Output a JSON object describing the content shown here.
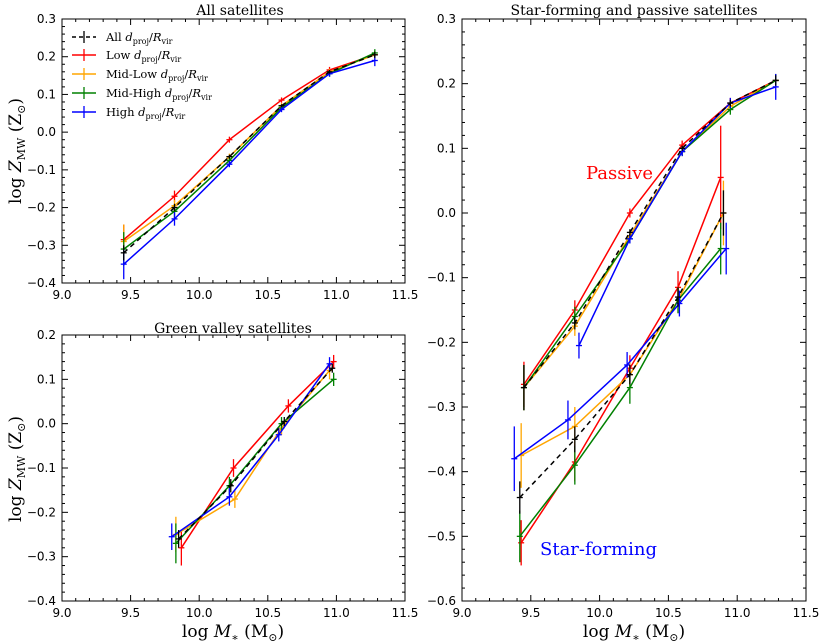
{
  "colors": {
    "all": "#000000",
    "low": "#ff0000",
    "midlow": "#ffa500",
    "midhigh": "#008000",
    "high": "#0000ff",
    "passive_text": "#ff0000",
    "sf_text": "#0000ff"
  },
  "legend": {
    "all": "All d_proj/R_vir",
    "low": "Low d_proj/R_vir",
    "midlow": "Mid-Low d_proj/R_vir",
    "midhigh": "Mid-High d_proj/R_vir",
    "high": "High d_proj/R_vir"
  },
  "chart_data": [
    {
      "id": "all",
      "type": "line",
      "title": "All satellites",
      "xlabel": "log M* (M⊙)",
      "ylabel": "log Z_MW (Z⊙)",
      "xlim": [
        9.0,
        11.5
      ],
      "ylim": [
        -0.4,
        0.3
      ],
      "xticks": [
        9.0,
        9.5,
        10.0,
        10.5,
        11.0,
        11.5
      ],
      "yticks": [
        -0.4,
        -0.3,
        -0.2,
        -0.1,
        0.0,
        0.1,
        0.2,
        0.3
      ],
      "tick_labels_x": [
        "9.0",
        "9.5",
        "10.0",
        "10.5",
        "11.0",
        "11.5"
      ],
      "tick_labels_y": [
        "−0.4",
        "−0.3",
        "−0.2",
        "−0.1",
        "0.0",
        "0.1",
        "0.2",
        "0.3"
      ],
      "series": [
        {
          "key": "low",
          "name": "Low d_proj/R_vir",
          "dashed": false,
          "x": [
            9.45,
            9.82,
            10.22,
            10.6,
            10.95,
            11.28
          ],
          "y": [
            -0.285,
            -0.17,
            -0.02,
            0.085,
            0.165,
            0.205
          ],
          "err": [
            0.04,
            0.015,
            0.008,
            0.007,
            0.008,
            0.01
          ]
        },
        {
          "key": "midlow",
          "name": "Mid-Low d_proj/R_vir",
          "dashed": false,
          "x": [
            9.45,
            9.82,
            10.22,
            10.6,
            10.95,
            11.28
          ],
          "y": [
            -0.29,
            -0.195,
            -0.065,
            0.07,
            0.16,
            0.205
          ],
          "err": [
            0.045,
            0.015,
            0.008,
            0.007,
            0.008,
            0.01
          ]
        },
        {
          "key": "midhigh",
          "name": "Mid-High d_proj/R_vir",
          "dashed": false,
          "x": [
            9.45,
            9.82,
            10.22,
            10.6,
            10.95,
            11.28
          ],
          "y": [
            -0.31,
            -0.21,
            -0.075,
            0.065,
            0.155,
            0.21
          ],
          "err": [
            0.045,
            0.018,
            0.008,
            0.007,
            0.008,
            0.01
          ]
        },
        {
          "key": "high",
          "name": "High d_proj/R_vir",
          "dashed": false,
          "x": [
            9.45,
            9.82,
            10.22,
            10.6,
            10.95,
            11.28
          ],
          "y": [
            -0.35,
            -0.23,
            -0.085,
            0.06,
            0.155,
            0.19
          ],
          "err": [
            0.04,
            0.018,
            0.008,
            0.007,
            0.008,
            0.015
          ]
        },
        {
          "key": "all",
          "name": "All d_proj/R_vir",
          "dashed": true,
          "x": [
            9.45,
            9.82,
            10.22,
            10.6,
            10.95,
            11.28
          ],
          "y": [
            -0.32,
            -0.2,
            -0.065,
            0.07,
            0.16,
            0.205
          ],
          "err": [
            0.02,
            0.01,
            0.005,
            0.004,
            0.005,
            0.008
          ]
        }
      ]
    },
    {
      "id": "green",
      "type": "line",
      "title": "Green valley satellites",
      "xlabel": "log M* (M⊙)",
      "ylabel": "log Z_MW (Z⊙)",
      "xlim": [
        9.0,
        11.5
      ],
      "ylim": [
        -0.4,
        0.2
      ],
      "xticks": [
        9.0,
        9.5,
        10.0,
        10.5,
        11.0,
        11.5
      ],
      "yticks": [
        -0.4,
        -0.3,
        -0.2,
        -0.1,
        0.0,
        0.1,
        0.2
      ],
      "tick_labels_x": [
        "9.0",
        "9.5",
        "10.0",
        "10.5",
        "11.0",
        "11.5"
      ],
      "tick_labels_y": [
        "−0.4",
        "−0.3",
        "−0.2",
        "−0.1",
        "0.0",
        "0.1",
        "0.2"
      ],
      "series": [
        {
          "key": "low",
          "name": "Low d_proj/R_vir",
          "dashed": false,
          "x": [
            9.87,
            10.25,
            10.65,
            10.98
          ],
          "y": [
            -0.28,
            -0.1,
            0.04,
            0.14
          ],
          "err": [
            0.04,
            0.02,
            0.015,
            0.015
          ]
        },
        {
          "key": "midlow",
          "name": "Mid-Low d_proj/R_vir",
          "dashed": false,
          "x": [
            9.83,
            10.26,
            10.6,
            10.95
          ],
          "y": [
            -0.25,
            -0.17,
            -0.01,
            0.12
          ],
          "err": [
            0.04,
            0.02,
            0.015,
            0.02
          ]
        },
        {
          "key": "midhigh",
          "name": "Mid-High d_proj/R_vir",
          "dashed": false,
          "x": [
            9.83,
            10.22,
            10.6,
            10.98
          ],
          "y": [
            -0.27,
            -0.14,
            0.0,
            0.1
          ],
          "err": [
            0.045,
            0.02,
            0.015,
            0.015
          ]
        },
        {
          "key": "high",
          "name": "High d_proj/R_vir",
          "dashed": false,
          "x": [
            9.8,
            10.22,
            10.58,
            10.95
          ],
          "y": [
            -0.255,
            -0.165,
            -0.025,
            0.135
          ],
          "err": [
            0.03,
            0.02,
            0.015,
            0.015
          ]
        },
        {
          "key": "all",
          "name": "All d_proj/R_vir",
          "dashed": true,
          "x": [
            9.85,
            10.23,
            10.62,
            10.97
          ],
          "y": [
            -0.26,
            -0.14,
            0.005,
            0.125
          ],
          "err": [
            0.02,
            0.015,
            0.01,
            0.01
          ]
        }
      ]
    },
    {
      "id": "sfpassive",
      "type": "line",
      "title": "Star-forming and passive satellites",
      "xlabel": "log M* (M⊙)",
      "ylabel": "",
      "xlim": [
        9.0,
        11.5
      ],
      "ylim": [
        -0.6,
        0.3
      ],
      "xticks": [
        9.0,
        9.5,
        10.0,
        10.5,
        11.0,
        11.5
      ],
      "yticks": [
        -0.6,
        -0.5,
        -0.4,
        -0.3,
        -0.2,
        -0.1,
        0.0,
        0.1,
        0.2,
        0.3
      ],
      "tick_labels_x": [
        "9.0",
        "9.5",
        "10.0",
        "10.5",
        "11.0",
        "11.5"
      ],
      "tick_labels_y": [
        "−0.6",
        "−0.5",
        "−0.4",
        "−0.3",
        "−0.2",
        "−0.1",
        "0.0",
        "0.1",
        "0.2",
        "0.3"
      ],
      "annotations": {
        "passive": "Passive",
        "star_forming": "Star-forming"
      },
      "series": [
        {
          "key": "low",
          "group": "passive",
          "name": "Low d_proj/R_vir",
          "dashed": false,
          "x": [
            9.45,
            9.82,
            10.22,
            10.6,
            10.95,
            11.28
          ],
          "y": [
            -0.265,
            -0.15,
            0.0,
            0.105,
            0.17,
            0.205
          ],
          "err": [
            0.035,
            0.015,
            0.007,
            0.007,
            0.008,
            0.01
          ]
        },
        {
          "key": "midlow",
          "group": "passive",
          "name": "Mid-Low d_proj/R_vir",
          "dashed": false,
          "x": [
            9.45,
            9.82,
            10.22,
            10.6,
            10.95,
            11.28
          ],
          "y": [
            -0.27,
            -0.175,
            -0.035,
            0.095,
            0.165,
            0.205
          ],
          "err": [
            0.035,
            0.015,
            0.007,
            0.007,
            0.008,
            0.01
          ]
        },
        {
          "key": "midhigh",
          "group": "passive",
          "name": "Mid-High d_proj/R_vir",
          "dashed": false,
          "x": [
            9.45,
            9.82,
            10.22,
            10.6,
            10.95,
            11.28
          ],
          "y": [
            -0.27,
            -0.16,
            -0.04,
            0.095,
            0.16,
            0.205
          ],
          "err": [
            0.035,
            0.015,
            0.007,
            0.007,
            0.008,
            0.01
          ]
        },
        {
          "key": "high",
          "group": "passive",
          "name": "High d_proj/R_vir",
          "dashed": false,
          "x": [
            9.85,
            10.22,
            10.6,
            10.95,
            11.28
          ],
          "y": [
            -0.205,
            -0.04,
            0.095,
            0.17,
            0.195
          ],
          "err": [
            0.02,
            0.007,
            0.007,
            0.008,
            0.02
          ]
        },
        {
          "key": "all",
          "group": "passive",
          "name": "All d_proj/R_vir",
          "dashed": true,
          "x": [
            9.45,
            9.82,
            10.22,
            10.6,
            10.95,
            11.28
          ],
          "y": [
            -0.27,
            -0.17,
            -0.03,
            0.1,
            0.17,
            0.205
          ],
          "err": [
            0.035,
            0.01,
            0.005,
            0.004,
            0.005,
            0.008
          ]
        },
        {
          "key": "low",
          "group": "star-forming",
          "name": "Low d_proj/R_vir",
          "dashed": false,
          "x": [
            9.43,
            9.82,
            10.22,
            10.57,
            10.88
          ],
          "y": [
            -0.51,
            -0.385,
            -0.24,
            -0.115,
            0.055
          ],
          "err": [
            0.035,
            0.03,
            0.02,
            0.025,
            0.08
          ]
        },
        {
          "key": "midlow",
          "group": "star-forming",
          "name": "Mid-Low d_proj/R_vir",
          "dashed": false,
          "x": [
            9.43,
            9.82,
            10.22,
            10.57,
            10.9
          ],
          "y": [
            -0.375,
            -0.33,
            -0.25,
            -0.135,
            0.0
          ],
          "err": [
            0.05,
            0.03,
            0.02,
            0.02,
            0.05
          ]
        },
        {
          "key": "midhigh",
          "group": "star-forming",
          "name": "Mid-High d_proj/R_vir",
          "dashed": false,
          "x": [
            9.42,
            9.82,
            10.22,
            10.57,
            10.88
          ],
          "y": [
            -0.5,
            -0.39,
            -0.27,
            -0.135,
            -0.055
          ],
          "err": [
            0.04,
            0.03,
            0.025,
            0.02,
            0.04
          ]
        },
        {
          "key": "high",
          "group": "star-forming",
          "name": "High d_proj/R_vir",
          "dashed": false,
          "x": [
            9.38,
            9.77,
            10.2,
            10.58,
            10.92
          ],
          "y": [
            -0.38,
            -0.32,
            -0.235,
            -0.14,
            -0.055
          ],
          "err": [
            0.05,
            0.03,
            0.02,
            0.02,
            0.04
          ]
        },
        {
          "key": "all",
          "group": "star-forming",
          "name": "All d_proj/R_vir",
          "dashed": true,
          "x": [
            9.42,
            9.82,
            10.22,
            10.57,
            10.9
          ],
          "y": [
            -0.44,
            -0.35,
            -0.25,
            -0.13,
            0.0
          ],
          "err": [
            0.025,
            0.02,
            0.015,
            0.015,
            0.035
          ]
        }
      ]
    }
  ]
}
